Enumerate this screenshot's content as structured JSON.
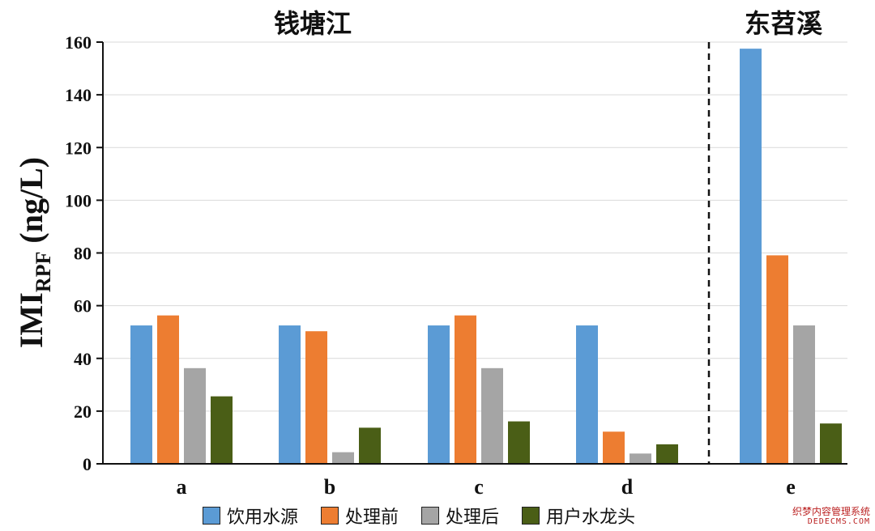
{
  "chart_data": {
    "type": "bar",
    "ylabel_main": "IMI",
    "ylabel_sub": "RPF",
    "ylabel_unit": " (ng/L)",
    "ylim": [
      0,
      160
    ],
    "yticks": [
      0,
      20,
      40,
      60,
      80,
      100,
      120,
      140,
      160
    ],
    "grid": true,
    "categories": [
      "a",
      "b",
      "c",
      "d",
      "e"
    ],
    "group_titles": [
      {
        "text": "钱塘江",
        "categories": [
          "a",
          "b",
          "c",
          "d"
        ]
      },
      {
        "text": "东苕溪",
        "categories": [
          "e"
        ]
      }
    ],
    "series": [
      {
        "name": "饮用水源",
        "color": "#5B9BD5",
        "values": [
          52.5,
          52.5,
          52.5,
          52.5,
          157.5
        ]
      },
      {
        "name": "处理前",
        "color": "#ED7D31",
        "values": [
          56.3,
          50.3,
          56.3,
          12.2,
          79.1
        ]
      },
      {
        "name": "处理后",
        "color": "#A5A5A5",
        "values": [
          36.3,
          4.4,
          36.3,
          3.9,
          52.5
        ]
      },
      {
        "name": "用户水龙头",
        "color": "#4A5E16",
        "values": [
          25.6,
          13.7,
          16.1,
          7.4,
          15.3
        ]
      }
    ],
    "legend_position": "bottom"
  },
  "watermark": {
    "line1": "织梦内容管理系统",
    "line2": "DEDECMS.COM"
  }
}
